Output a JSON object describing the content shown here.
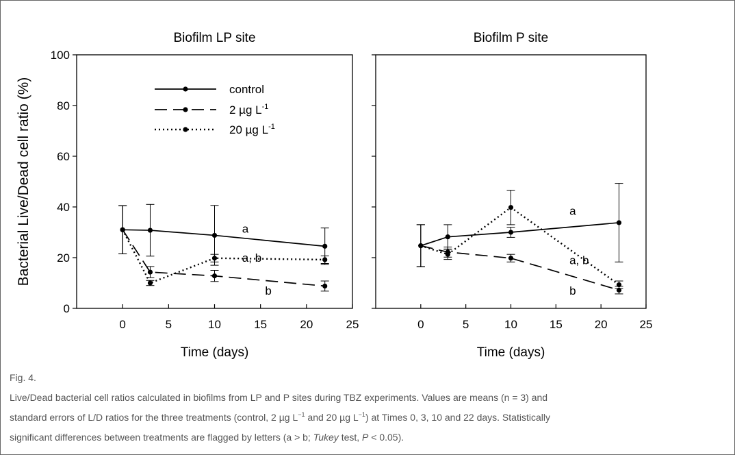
{
  "chart_data": [
    {
      "type": "line",
      "title": "Biofilm LP site",
      "xlabel": "Time (days)",
      "ylabel": "Bacterial Live/Dead cell ratio (%)",
      "xlim": [
        -5,
        25
      ],
      "ylim": [
        0,
        100
      ],
      "xticks": [
        0,
        5,
        10,
        15,
        20,
        25
      ],
      "yticks": [
        0,
        20,
        40,
        60,
        80,
        100
      ],
      "legend_position": "top-center",
      "x": [
        0,
        3,
        10,
        22
      ],
      "series": [
        {
          "name": "control",
          "style": "solid",
          "values": [
            31,
            30.8,
            28.8,
            24.5
          ],
          "errors": [
            9.5,
            10.2,
            11.8,
            7.2
          ]
        },
        {
          "name": "2 µg L-1",
          "name_base": "2 µg L",
          "name_sup": "-1",
          "style": "dashed",
          "values": [
            31,
            14.3,
            12.8,
            8.8
          ],
          "errors": [
            9.5,
            2.2,
            2.2,
            2.0
          ]
        },
        {
          "name": "20 µg L-1",
          "name_base": "20 µg L",
          "name_sup": "-1",
          "style": "dotted",
          "values": [
            31,
            10,
            19.8,
            19.2
          ],
          "errors": [
            9.5,
            1.0,
            1.5,
            1.5
          ]
        }
      ],
      "annotations": [
        {
          "text": "a",
          "x": 13,
          "y": 31.5
        },
        {
          "text": "a, b",
          "x": 13,
          "y": 20
        },
        {
          "text": "b",
          "x": 15.5,
          "y": 7
        }
      ]
    },
    {
      "type": "line",
      "title": "Biofilm P site",
      "xlabel": "Time (days)",
      "ylabel": "",
      "xlim": [
        -5,
        25
      ],
      "ylim": [
        0,
        100
      ],
      "xticks": [
        0,
        5,
        10,
        15,
        20,
        25
      ],
      "yticks": [
        0,
        20,
        40,
        60,
        80,
        100
      ],
      "x": [
        0,
        3,
        10,
        22
      ],
      "series": [
        {
          "name": "control",
          "style": "solid",
          "values": [
            24.7,
            28.2,
            30,
            33.8
          ],
          "errors": [
            8.3,
            4.8,
            2.0,
            15.5
          ]
        },
        {
          "name": "2 µg L-1",
          "style": "dashed",
          "values": [
            24.7,
            22.2,
            19.8,
            7.2
          ],
          "errors": [
            8.3,
            2.0,
            1.5,
            1.5
          ]
        },
        {
          "name": "20 µg L-1",
          "style": "dotted",
          "values": [
            24.7,
            21.3,
            39.8,
            9.3
          ],
          "errors": [
            8.3,
            2.0,
            6.8,
            1.5
          ]
        }
      ],
      "annotations": [
        {
          "text": "a",
          "x": 16.5,
          "y": 38.5
        },
        {
          "text": "a, b",
          "x": 16.5,
          "y": 19
        },
        {
          "text": "b",
          "x": 16.5,
          "y": 7
        }
      ]
    }
  ],
  "caption": {
    "label": "Fig. 4.",
    "line1": "Live/Dead bacterial cell ratios calculated in biofilms from LP and P sites during TBZ experiments. Values are means (n = 3) and",
    "line2_a": "standard errors of L/D ratios for the three treatments (control, 2 µg L",
    "line2_sup1": "−1",
    "line2_b": " and 20 µg L",
    "line2_sup2": "−1",
    "line2_c": ") at Times 0, 3, 10 and 22 days. Statistically",
    "line3_a": "significant differences between treatments are flagged by letters (a > b; ",
    "line3_italic": "Tukey",
    "line3_b": " test, ",
    "line3_italic2": "P",
    "line3_c": " < 0.05)."
  }
}
